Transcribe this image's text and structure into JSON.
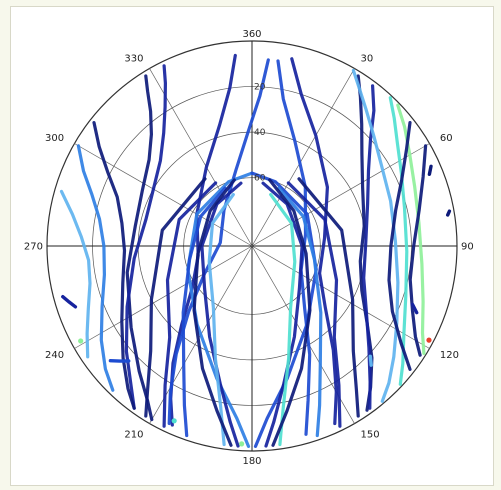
{
  "chart_data": {
    "type": "line",
    "projection": "polar",
    "title": "",
    "angular_axis": {
      "direction": "clockwise",
      "zero_location": "top",
      "ticks": [
        0,
        30,
        60,
        90,
        120,
        150,
        180,
        210,
        240,
        270,
        300,
        330
      ],
      "tick_labels": [
        "360",
        "30",
        "60",
        "90",
        "120",
        "150",
        "180",
        "210",
        "240",
        "270",
        "300",
        "330"
      ]
    },
    "radial_axis": {
      "range": [
        0,
        90
      ],
      "rings": [
        0,
        20,
        40,
        60
      ],
      "ring_labels": [
        "",
        "20",
        "40",
        "60"
      ],
      "label_angle": 0
    },
    "grid": true,
    "legend": "none",
    "color_scale": [
      "#0d1a7a",
      "#16239e",
      "#1d4bd1",
      "#2f7fe4",
      "#5fb3ef",
      "#4fe0d0",
      "#8ff09a",
      "#e8402a"
    ],
    "tracks": [
      {
        "az": [
          328,
          326,
          323,
          318,
          310,
          297,
          280,
          258,
          236,
          222,
          214,
          210
        ],
        "el": [
          2,
          8,
          16,
          24,
          31,
          36,
          38,
          34,
          26,
          16,
          8,
          2
        ],
        "color": "#0d1a7a"
      },
      {
        "az": [
          334,
          332,
          328,
          322,
          313,
          300,
          284,
          264,
          244,
          230,
          221,
          216
        ],
        "el": [
          2,
          9,
          18,
          27,
          35,
          40,
          42,
          38,
          29,
          18,
          9,
          2
        ],
        "color": "#16239e"
      },
      {
        "az": [
          308,
          303,
          297,
          290,
          280,
          268,
          254,
          240,
          229,
          221,
          216
        ],
        "el": [
          2,
          10,
          19,
          27,
          32,
          34,
          31,
          24,
          15,
          7,
          2
        ],
        "color": "#0d1a7a"
      },
      {
        "az": [
          300,
          294,
          288,
          280,
          270,
          259,
          248,
          238,
          230,
          224
        ],
        "el": [
          2,
          9,
          16,
          22,
          25,
          24,
          19,
          12,
          6,
          2
        ],
        "color": "#2f7fe4"
      },
      {
        "az": [
          286,
          280,
          273,
          265,
          257,
          249,
          242,
          236
        ],
        "el": [
          3,
          10,
          15,
          18,
          17,
          13,
          8,
          3
        ],
        "color": "#5fb3ef"
      },
      {
        "az": [
          355,
          352,
          345,
          330,
          300,
          260,
          235,
          222,
          214,
          208,
          204
        ],
        "el": [
          6,
          20,
          35,
          50,
          62,
          66,
          58,
          44,
          28,
          14,
          4
        ],
        "color": "#16239e"
      },
      {
        "az": [
          5,
          3,
          358,
          348,
          322,
          276,
          240,
          224,
          215,
          209,
          205
        ],
        "el": [
          8,
          24,
          40,
          56,
          70,
          76,
          66,
          50,
          32,
          16,
          4
        ],
        "color": "#1d4bd1"
      },
      {
        "az": [
          32,
          36,
          42,
          50,
          62,
          80,
          98,
          112,
          124,
          133,
          140,
          145
        ],
        "el": [
          2,
          9,
          18,
          27,
          35,
          40,
          42,
          38,
          29,
          18,
          9,
          2
        ],
        "color": "#0d1a7a"
      },
      {
        "az": [
          37,
          42,
          48,
          57,
          70,
          88,
          106,
          120,
          131,
          139,
          144
        ],
        "el": [
          2,
          10,
          20,
          29,
          36,
          40,
          39,
          32,
          22,
          11,
          2
        ],
        "color": "#16239e"
      },
      {
        "az": [
          30,
          34,
          40,
          48,
          58,
          72,
          88,
          104,
          118,
          128,
          135,
          140
        ],
        "el": [
          1,
          6,
          12,
          18,
          23,
          26,
          27,
          24,
          18,
          11,
          5,
          1
        ],
        "color": "#5fb3ef"
      },
      {
        "az": [
          43,
          48,
          55,
          64,
          76,
          92,
          108,
          120,
          128,
          133
        ],
        "el": [
          1,
          6,
          12,
          17,
          21,
          22,
          19,
          13,
          6,
          1
        ],
        "color": "#4fe0d0"
      },
      {
        "az": [
          46,
          52,
          60,
          70,
          82,
          96,
          108,
          117,
          122
        ],
        "el": [
          1,
          5,
          10,
          14,
          16,
          15,
          11,
          6,
          1
        ],
        "color": "#8ff09a"
      },
      {
        "az": [
          60,
          68,
          78,
          90,
          102,
          112,
          119,
          123
        ],
        "el": [
          2,
          9,
          15,
          19,
          19,
          14,
          8,
          2
        ],
        "color": "#0d1a7a"
      },
      {
        "az": [
          52,
          58,
          66,
          76,
          90,
          104,
          115,
          123,
          128
        ],
        "el": [
          2,
          10,
          18,
          25,
          29,
          28,
          22,
          12,
          2
        ],
        "color": "#0d1a7a"
      },
      {
        "az": [
          12,
          18,
          30,
          52,
          84,
          112,
          130,
          142,
          150,
          155
        ],
        "el": [
          6,
          20,
          34,
          48,
          58,
          58,
          48,
          32,
          16,
          4
        ],
        "color": "#16239e"
      },
      {
        "az": [
          8,
          12,
          22,
          42,
          78,
          116,
          140,
          152,
          160,
          164
        ],
        "el": [
          8,
          24,
          40,
          55,
          66,
          66,
          54,
          36,
          18,
          4
        ],
        "color": "#1d4bd1"
      },
      {
        "az": [
          360,
          340,
          300,
          250,
          215,
          195,
          185,
          181
        ],
        "el": [
          58,
          60,
          62,
          60,
          48,
          30,
          14,
          2
        ],
        "color": "#2f7fe4"
      },
      {
        "az": [
          0,
          20,
          60,
          110,
          145,
          165,
          175,
          179
        ],
        "el": [
          58,
          60,
          62,
          60,
          48,
          30,
          14,
          2
        ],
        "color": "#1d4bd1"
      },
      {
        "az": [
          350,
          320,
          270,
          228,
          205,
          193,
          187,
          184
        ],
        "el": [
          62,
          66,
          68,
          62,
          46,
          28,
          12,
          2
        ],
        "color": "#16239e"
      },
      {
        "az": [
          10,
          40,
          90,
          132,
          155,
          167,
          173,
          176
        ],
        "el": [
          62,
          66,
          68,
          62,
          46,
          28,
          12,
          2
        ],
        "color": "#16239e"
      },
      {
        "az": [
          340,
          300,
          250,
          212,
          198,
          191,
          188
        ],
        "el": [
          66,
          70,
          70,
          58,
          38,
          18,
          2
        ],
        "color": "#5fb3ef"
      },
      {
        "az": [
          20,
          60,
          110,
          148,
          162,
          169,
          172
        ],
        "el": [
          66,
          70,
          70,
          58,
          38,
          18,
          2
        ],
        "color": "#4fe0d0"
      },
      {
        "az": [
          335,
          300,
          258,
          226,
          210,
          203,
          199
        ],
        "el": [
          62,
          64,
          62,
          48,
          30,
          14,
          2
        ],
        "color": "#1d4bd1"
      },
      {
        "az": [
          25,
          60,
          102,
          134,
          150,
          157,
          161
        ],
        "el": [
          62,
          64,
          62,
          48,
          30,
          14,
          2
        ],
        "color": "#2f7fe4"
      },
      {
        "az": [
          345,
          310,
          262,
          222,
          202,
          192,
          186
        ],
        "el": [
          60,
          66,
          66,
          52,
          32,
          16,
          2
        ],
        "color": "#0d1a7a"
      },
      {
        "az": [
          15,
          50,
          98,
          138,
          158,
          168,
          174
        ],
        "el": [
          60,
          66,
          66,
          52,
          32,
          16,
          2
        ],
        "color": "#0d1a7a"
      },
      {
        "az": [
          330,
          290,
          248,
          222,
          212,
          206
        ],
        "el": [
          58,
          56,
          50,
          36,
          18,
          2
        ],
        "color": "#16239e"
      },
      {
        "az": [
          30,
          70,
          112,
          138,
          148,
          154
        ],
        "el": [
          58,
          56,
          50,
          36,
          18,
          2
        ],
        "color": "#16239e"
      },
      {
        "az": [
          325,
          280,
          242,
          224,
          216,
          212
        ],
        "el": [
          54,
          50,
          40,
          26,
          12,
          2
        ],
        "color": "#0d1a7a"
      },
      {
        "az": [
          35,
          80,
          118,
          136,
          144,
          148
        ],
        "el": [
          54,
          50,
          40,
          26,
          12,
          2
        ],
        "color": "#0d1a7a"
      }
    ],
    "markers": [
      {
        "az": 118,
        "el": 2,
        "color": "#e8402a"
      },
      {
        "az": 241,
        "el": 4,
        "color": "#8ff09a"
      },
      {
        "az": 183,
        "el": 3,
        "color": "#8ff09a"
      },
      {
        "az": 204,
        "el": 6,
        "color": "#4fe0d0"
      }
    ],
    "fragments": [
      {
        "az": [
          255,
          253,
          251
        ],
        "el": [
          4,
          6,
          8
        ],
        "color": "#16239e"
      },
      {
        "az": [
          231,
          229,
          227
        ],
        "el": [
          10,
          13,
          16
        ],
        "color": "#1d4bd1"
      },
      {
        "az": [
          66,
          68
        ],
        "el": [
          4,
          6
        ],
        "color": "#0d1a7a"
      },
      {
        "az": [
          80,
          81
        ],
        "el": [
          2,
          3
        ],
        "color": "#0d1a7a"
      },
      {
        "az": [
          112,
          110
        ],
        "el": [
          12,
          15
        ],
        "color": "#16239e"
      },
      {
        "az": [
          135,
          133
        ],
        "el": [
          16,
          19
        ],
        "color": "#5fb3ef"
      }
    ]
  }
}
